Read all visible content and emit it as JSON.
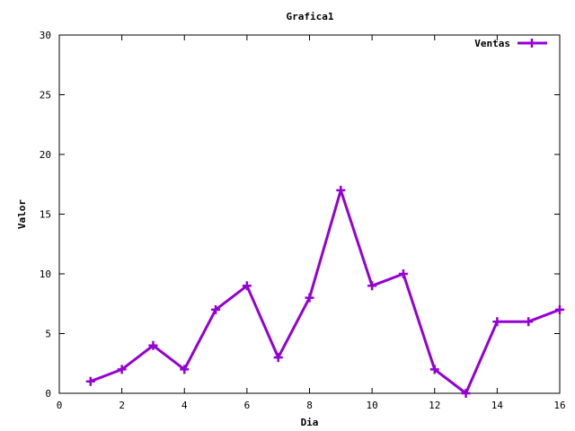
{
  "chart_data": {
    "type": "line",
    "title": "Grafica1",
    "xlabel": "Dia",
    "ylabel": "Valor",
    "xlim": [
      0,
      16
    ],
    "ylim": [
      0,
      30
    ],
    "xticks": [
      0,
      2,
      4,
      6,
      8,
      10,
      12,
      14,
      16
    ],
    "yticks": [
      0,
      5,
      10,
      15,
      20,
      25,
      30
    ],
    "grid": false,
    "legend_position": "top-right",
    "series": [
      {
        "name": "Ventas",
        "color": "#9400d3",
        "marker": "plus",
        "x": [
          1,
          2,
          3,
          4,
          5,
          6,
          7,
          8,
          9,
          10,
          11,
          12,
          13,
          14,
          15,
          16
        ],
        "y": [
          1,
          2,
          4,
          2,
          7,
          9,
          3,
          8,
          17,
          9,
          10,
          2,
          0,
          6,
          6,
          7
        ]
      }
    ]
  }
}
